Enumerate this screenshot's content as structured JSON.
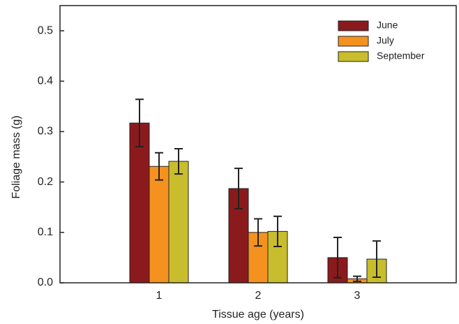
{
  "chart_data": {
    "type": "bar",
    "x_label": "Tissue age (years)",
    "y_label": "Foliage mass (g)",
    "x": [
      1,
      2,
      3
    ],
    "xlim": [
      0,
      4
    ],
    "xticks": [
      1,
      2,
      3
    ],
    "ylim": [
      0,
      0.55
    ],
    "yticks": [
      {
        "value": 0,
        "label": "0.0"
      },
      0.1,
      0.2,
      0.3,
      0.4,
      0.5
    ],
    "legend": "upper right",
    "series": [
      {
        "name": "June",
        "color": "#8b1a1d",
        "values": [
          0.317,
          0.187,
          0.05
        ],
        "errors": [
          0.047,
          0.04,
          0.04
        ]
      },
      {
        "name": "July",
        "color": "#f5921f",
        "values": [
          0.231,
          0.1,
          0.008
        ],
        "errors": [
          0.027,
          0.027,
          0.005
        ]
      },
      {
        "name": "September",
        "color": "#c8bd2c",
        "values": [
          0.241,
          0.102,
          0.047
        ],
        "errors": [
          0.025,
          0.03,
          0.036
        ]
      }
    ]
  }
}
